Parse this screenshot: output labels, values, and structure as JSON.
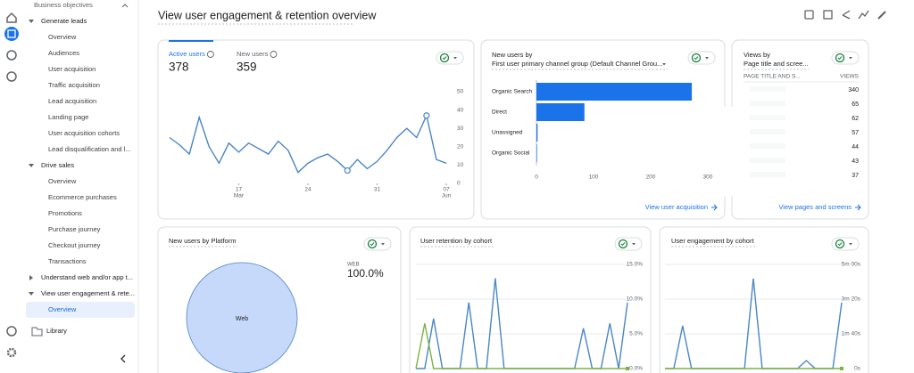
{
  "nav": {
    "header": "Business objectives",
    "sections": [
      {
        "label": "Generate leads",
        "items": [
          "Overview",
          "Audiences",
          "User acquisition",
          "Traffic acquisition",
          "Lead acquisition",
          "Landing page",
          "User acquisition cohorts",
          "Lead disqualification and l..."
        ]
      },
      {
        "label": "Drive sales",
        "items": [
          "Overview",
          "Ecommerce purchases",
          "Promotions",
          "Purchase journey",
          "Checkout journey",
          "Transactions"
        ]
      },
      {
        "label": "Understand web and/or app t...",
        "items": []
      },
      {
        "label": "View user engagement & rete...",
        "items": [
          "Overview"
        ]
      }
    ],
    "library": "Library"
  },
  "page_title": "View user engagement & retention overview",
  "cards": {
    "users": {
      "tabs": [
        {
          "label": "Active users",
          "value": 378
        },
        {
          "label": "New users",
          "value": 359
        }
      ],
      "chart_data": {
        "type": "line",
        "series": [
          {
            "color": "#4a86c5",
            "values": [
              25,
              21,
              16,
              36,
              20,
              11,
              22,
              17,
              22,
              19,
              16,
              23,
              18,
              6,
              11,
              14,
              16,
              12,
              7,
              13,
              8,
              12,
              18,
              25,
              30,
              25,
              37,
              13,
              11
            ],
            "markers": [
              18,
              26
            ]
          }
        ],
        "ylim": [
          0,
          50
        ],
        "yticks": [
          0,
          10,
          20,
          30,
          40,
          50
        ],
        "xlim": [
          0,
          28
        ],
        "xticks": [
          {
            "value": 7,
            "label": "17",
            "sublabel": "Mar"
          },
          {
            "value": 14,
            "label": "24"
          },
          {
            "value": 21,
            "label": "31"
          },
          {
            "value": 28,
            "label": "07",
            "sublabel": "Jun"
          }
        ]
      }
    },
    "channels": {
      "title": "New users by",
      "subtitle": "First user primary channel group (Default Channel Grou...",
      "link": "View user acquisition",
      "chart_data": {
        "type": "hbar",
        "categories": [
          "Organic Search",
          "Direct",
          "Unassigned",
          "Organic Social"
        ],
        "values": [
          272,
          84,
          2,
          1
        ],
        "color": "#1a73e8",
        "xlim": [
          0,
          300
        ],
        "xticks": [
          0,
          100,
          200,
          300
        ]
      }
    },
    "views": {
      "title": "Views by",
      "subtitle": "Page title and scree...",
      "columns": [
        "PAGE TITLE AND S...",
        "VIEWS"
      ],
      "values": [
        340,
        65,
        62,
        57,
        44,
        43,
        37
      ],
      "link": "View pages and screens"
    },
    "platform": {
      "title": "New users by Platform",
      "chart_data": {
        "type": "pie",
        "categories": [
          "Web"
        ],
        "legend_labels": [
          "WEB"
        ],
        "values": [
          100
        ],
        "value_labels": [
          "100.0%"
        ],
        "colors": [
          "#c6d9fb"
        ]
      }
    },
    "retention": {
      "title": "User retention by cohort",
      "chart_data": {
        "type": "line",
        "series": [
          {
            "color": "#4a86c5",
            "values": [
              0,
              0,
              7.2,
              0,
              0,
              0,
              9.5,
              0,
              0,
              13,
              0,
              0,
              0,
              0,
              0,
              0,
              0,
              0,
              0,
              5.8,
              0,
              0,
              6.5,
              0,
              9.5
            ]
          },
          {
            "color": "#7cb342",
            "values": [
              0,
              6.5,
              0,
              0,
              0,
              0,
              0,
              0,
              0,
              0,
              0,
              0,
              0,
              0,
              0,
              0,
              0,
              0,
              0,
              0,
              0,
              0,
              0,
              0,
              0
            ]
          }
        ],
        "ylim": [
          0,
          15
        ],
        "yticks": [
          {
            "value": 0,
            "label": "0.0%"
          },
          {
            "value": 5,
            "label": "5.0%"
          },
          {
            "value": 10,
            "label": "10.0%"
          },
          {
            "value": 15,
            "label": "15.0%"
          }
        ]
      }
    },
    "engagement": {
      "title": "User engagement by cohort",
      "chart_data": {
        "type": "line",
        "series": [
          {
            "color": "#4a86c5",
            "values": [
              0,
              0,
              123,
              0,
              0,
              0,
              0,
              0,
              0,
              0,
              259,
              0,
              0,
              0,
              0,
              0,
              23,
              0,
              0,
              0,
              190
            ]
          },
          {
            "color": "#7cb342",
            "values": [
              0,
              0,
              0,
              0,
              0,
              0,
              0,
              0,
              0,
              0,
              0,
              0,
              0,
              0,
              0,
              0,
              0,
              0,
              0,
              0,
              0
            ]
          }
        ],
        "ylim": [
          0,
          300
        ],
        "yticks": [
          {
            "value": 0,
            "label": "0s"
          },
          {
            "value": 100,
            "label": "1m 40s"
          },
          {
            "value": 200,
            "label": "3m 20s"
          },
          {
            "value": 300,
            "label": "5m 00s"
          }
        ]
      }
    }
  }
}
